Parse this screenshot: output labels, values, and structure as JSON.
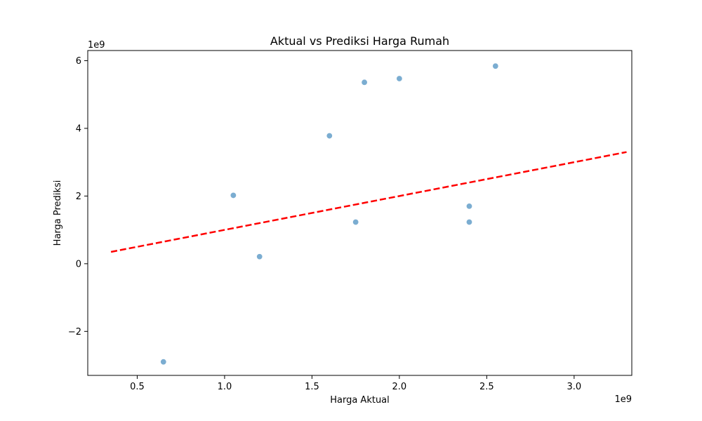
{
  "chart_data": {
    "type": "scatter",
    "title": "Aktual vs Prediksi Harga Rumah",
    "xlabel": "Harga Aktual",
    "ylabel": "Harga Prediksi",
    "x_offset_label": "1e9",
    "y_offset_label": "1e9",
    "xlim": [
      0.217,
      3.33
    ],
    "ylim": [
      -3.3,
      6.3
    ],
    "xticks": [
      0.5,
      1.0,
      1.5,
      2.0,
      2.5,
      3.0
    ],
    "xtick_labels": [
      "0.5",
      "1.0",
      "1.5",
      "2.0",
      "2.5",
      "3.0"
    ],
    "yticks": [
      -2,
      0,
      2,
      4,
      6
    ],
    "ytick_labels": [
      "−2",
      "0",
      "2",
      "4",
      "6"
    ],
    "grid": false,
    "legend": "none",
    "series": [
      {
        "kind": "points",
        "color": "#74a9cf",
        "x": [
          0.65,
          1.05,
          1.2,
          1.6,
          1.75,
          1.8,
          2.0,
          2.4,
          2.4,
          2.55
        ],
        "y": [
          -2.9,
          2.02,
          0.21,
          3.78,
          1.23,
          5.36,
          5.47,
          1.7,
          1.23,
          5.84
        ]
      },
      {
        "kind": "reference-line",
        "color": "#ff0000",
        "style": "dashed",
        "x": [
          0.35,
          3.3
        ],
        "y": [
          0.35,
          3.3
        ]
      }
    ]
  }
}
